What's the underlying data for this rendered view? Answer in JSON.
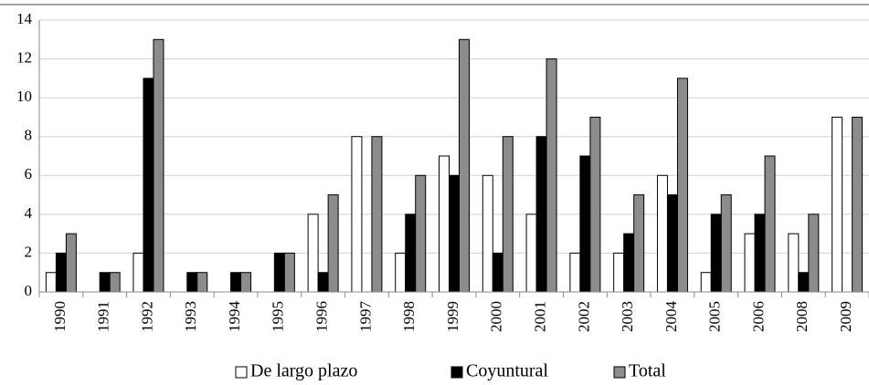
{
  "chart_data": {
    "type": "bar",
    "categories": [
      "1990",
      "1991",
      "1992",
      "1993",
      "1994",
      "1995",
      "1996",
      "1997",
      "1998",
      "1999",
      "2000",
      "2001",
      "2002",
      "2003",
      "2004",
      "2005",
      "2006",
      "2008",
      "2009"
    ],
    "series": [
      {
        "name": "De largo plazo",
        "color": "#ffffff",
        "values": [
          1,
          0,
          2,
          0,
          0,
          0,
          4,
          8,
          2,
          7,
          6,
          4,
          2,
          2,
          6,
          1,
          3,
          3,
          9
        ]
      },
      {
        "name": "Coyuntural",
        "color": "#000000",
        "values": [
          2,
          1,
          11,
          1,
          1,
          2,
          1,
          0,
          4,
          6,
          2,
          8,
          7,
          3,
          5,
          4,
          4,
          1,
          0
        ]
      },
      {
        "name": "Total",
        "color": "#8c8c8c",
        "values": [
          3,
          1,
          13,
          1,
          1,
          2,
          5,
          8,
          6,
          13,
          8,
          12,
          9,
          5,
          11,
          5,
          7,
          4,
          9
        ]
      }
    ],
    "ylim": [
      0,
      14
    ],
    "yticks": [
      0,
      2,
      4,
      6,
      8,
      10,
      12,
      14
    ],
    "grid": true,
    "legend": "bottom"
  }
}
